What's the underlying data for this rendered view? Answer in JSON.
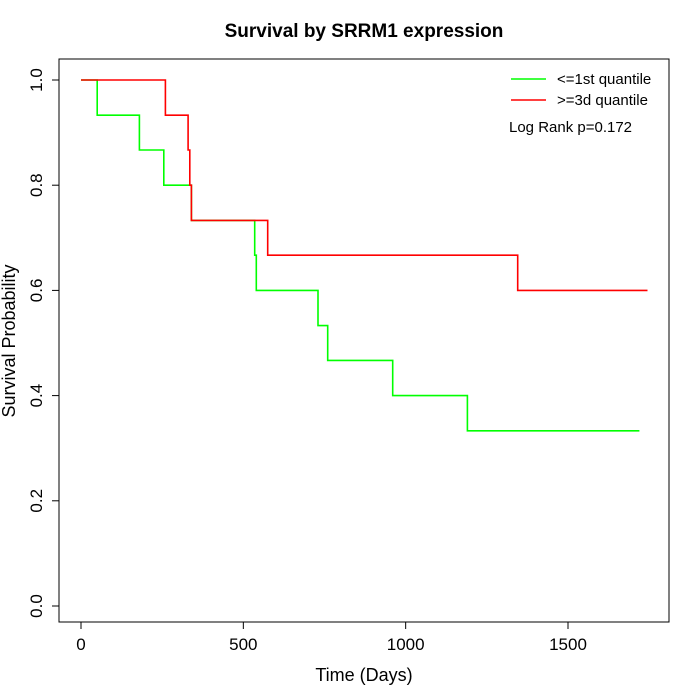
{
  "chart_data": {
    "type": "line",
    "title": "Survival by SRRM1 expression",
    "xlabel": "Time (Days)",
    "ylabel": "Survival Probability",
    "xlim": [
      0,
      1800
    ],
    "ylim": [
      0,
      1.0
    ],
    "x_ticks": [
      0,
      500,
      1000,
      1500
    ],
    "x_tick_labels": [
      "0",
      "500",
      "1000",
      "1500"
    ],
    "y_ticks": [
      0,
      0.2,
      0.4,
      0.6,
      0.8,
      1.0
    ],
    "y_tick_labels": [
      "0.0",
      "0.2",
      "0.4",
      "0.6",
      "0.8",
      "1.0"
    ],
    "grid": false,
    "legend_position": "top-right",
    "annotation": "Log Rank p=0.172",
    "series": [
      {
        "name": "<=1st quantile",
        "color": "#00ff00",
        "step": true,
        "points": [
          [
            0,
            1.0
          ],
          [
            50,
            1.0
          ],
          [
            50,
            0.933
          ],
          [
            180,
            0.933
          ],
          [
            180,
            0.867
          ],
          [
            255,
            0.867
          ],
          [
            255,
            0.8
          ],
          [
            340,
            0.8
          ],
          [
            340,
            0.733
          ],
          [
            535,
            0.733
          ],
          [
            535,
            0.667
          ],
          [
            540,
            0.667
          ],
          [
            540,
            0.6
          ],
          [
            730,
            0.6
          ],
          [
            730,
            0.533
          ],
          [
            760,
            0.533
          ],
          [
            760,
            0.467
          ],
          [
            960,
            0.467
          ],
          [
            960,
            0.4
          ],
          [
            1190,
            0.4
          ],
          [
            1190,
            0.333
          ],
          [
            1720,
            0.333
          ]
        ]
      },
      {
        "name": ">=3d quantile",
        "color": "#ff0000",
        "step": true,
        "points": [
          [
            0,
            1.0
          ],
          [
            260,
            1.0
          ],
          [
            260,
            0.933
          ],
          [
            330,
            0.933
          ],
          [
            330,
            0.867
          ],
          [
            335,
            0.867
          ],
          [
            335,
            0.8
          ],
          [
            340,
            0.8
          ],
          [
            340,
            0.733
          ],
          [
            575,
            0.733
          ],
          [
            575,
            0.667
          ],
          [
            1345,
            0.667
          ],
          [
            1345,
            0.6
          ],
          [
            1745,
            0.6
          ]
        ]
      }
    ]
  }
}
